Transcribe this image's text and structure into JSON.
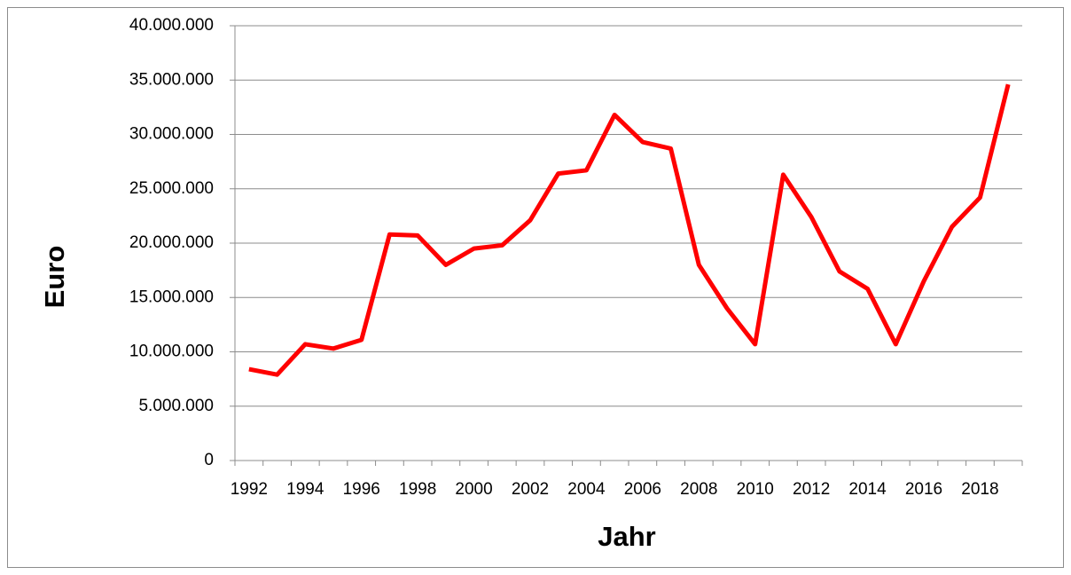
{
  "chart_data": {
    "type": "line",
    "x_label": "Jahr",
    "y_label": "Euro",
    "categories": [
      "1992",
      null,
      "1994",
      null,
      "1996",
      null,
      "1998",
      null,
      "2000",
      null,
      "2002",
      null,
      "2004",
      null,
      "2006",
      null,
      "2008",
      null,
      "2010",
      null,
      "2012",
      null,
      "2014",
      null,
      "2016",
      null,
      "2018",
      null
    ],
    "values": [
      8400000,
      7900000,
      10700000,
      10300000,
      11100000,
      20800000,
      20700000,
      18000000,
      19500000,
      19800000,
      22100000,
      26400000,
      26700000,
      31800000,
      29300000,
      28700000,
      18000000,
      14000000,
      10700000,
      26300000,
      22400000,
      17400000,
      15800000,
      10700000,
      16500000,
      21500000,
      24200000,
      34600000
    ],
    "color": "#ff0000",
    "ylim": [
      0,
      40000000
    ],
    "yticks": [
      0,
      {
        "value": 5000000,
        "label": "5.000.000"
      },
      {
        "value": 10000000,
        "label": "10.000.000"
      },
      {
        "value": 15000000,
        "label": "15.000.000"
      },
      {
        "value": 20000000,
        "label": "20.000.000"
      },
      {
        "value": 25000000,
        "label": "25.000.000"
      },
      {
        "value": 30000000,
        "label": "30.000.000"
      },
      {
        "value": 35000000,
        "label": "35.000.000"
      },
      {
        "value": 40000000,
        "label": "40.000.000"
      }
    ],
    "grid": true
  }
}
